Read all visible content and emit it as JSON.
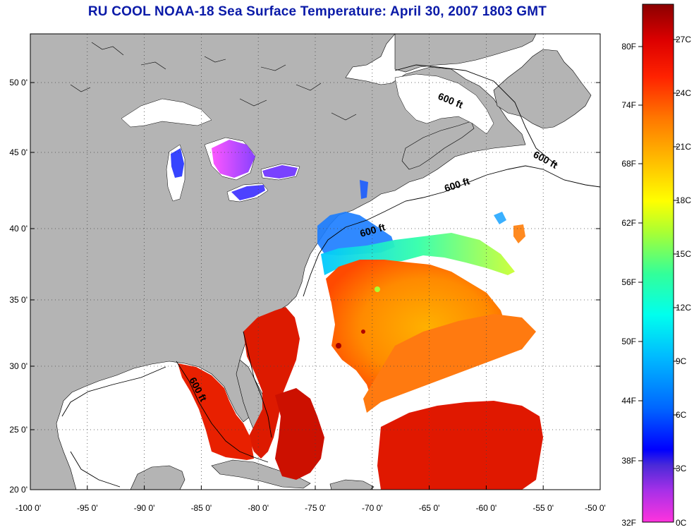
{
  "title": "RU COOL  NOAA-18  Sea Surface Temperature:  April 30, 2007 1803 GMT",
  "map": {
    "x_tick_labels": [
      "-100 0'",
      "-95 0'",
      "-90 0'",
      "-85 0'",
      "-80 0'",
      "-75 0'",
      "-70 0'",
      "-65 0'",
      "-60 0'",
      "-55 0'",
      "-50 0'"
    ],
    "y_tick_labels": [
      "50 0'",
      "45 0'",
      "40 0'",
      "35 0'",
      "30 0'",
      "25 0'",
      "20 0'"
    ],
    "depth_contour_labels": [
      "600 ft",
      "600 ft",
      "600 ft",
      "600 ft",
      "600 ft"
    ],
    "land_color": "#b4b4b4",
    "cloud_color": "#ffffff",
    "lon_range": [
      -100,
      -50
    ],
    "lat_range": [
      20,
      52.5
    ]
  },
  "colorbar": {
    "fahrenheit_labels": [
      "80F",
      "74F",
      "68F",
      "62F",
      "56F",
      "50F",
      "44F",
      "38F",
      "32F"
    ],
    "celsius_labels": [
      "27C",
      "24C",
      "21C",
      "18C",
      "15C",
      "12C",
      "9C",
      "6C",
      "3C",
      "0C"
    ],
    "gradient_colors": [
      "#ff33dd",
      "#a830e8",
      "#4a2ad8",
      "#0000ff",
      "#0066ff",
      "#00bbff",
      "#00ffee",
      "#33ff99",
      "#aaff33",
      "#ffff00",
      "#ffbb00",
      "#ff7700",
      "#ff2200",
      "#dd0000",
      "#8b0000"
    ]
  }
}
